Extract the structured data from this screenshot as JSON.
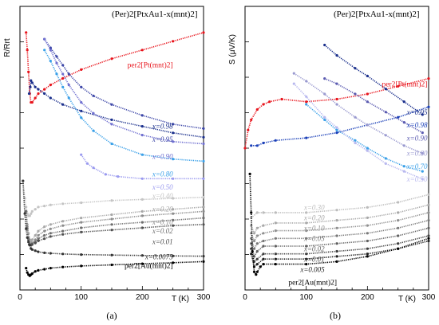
{
  "chart_data": [
    {
      "panel_label": "(a)",
      "type": "line",
      "title": "(Per)2[PtxAu1-x(mnt)2]",
      "ylabel": "R/Rrt",
      "xlabel": "T (K)",
      "xlim": [
        0,
        300
      ],
      "x_ticks": [
        "0",
        "100",
        "200",
        "300"
      ],
      "series": [
        {
          "name": "per2[Pt(mnt)2]",
          "color": "#e8141c",
          "x": [
            10,
            12,
            14,
            16,
            18,
            20,
            25,
            30,
            40,
            50,
            70,
            100,
            150,
            200,
            250,
            300
          ],
          "y": [
            98,
            90,
            80,
            70,
            66,
            66,
            68,
            70,
            72,
            74,
            77,
            81,
            86,
            90,
            94,
            98
          ]
        },
        {
          "name": "x=0.98",
          "color": "#1a2f8c",
          "x": [
            15,
            17,
            18,
            20,
            25,
            30,
            40,
            50,
            70,
            100,
            150,
            200,
            250,
            300
          ],
          "y": [
            70,
            73,
            76,
            75,
            73,
            72,
            70,
            68,
            65,
            62,
            58,
            55,
            52,
            50
          ]
        },
        {
          "name": "x=0.95",
          "color": "#3d47a8",
          "x": [
            40,
            50,
            60,
            70,
            80,
            100,
            120,
            150,
            200,
            250,
            300
          ],
          "y": [
            95,
            91,
            87,
            83,
            79,
            73,
            69,
            65,
            60,
            56,
            54
          ]
        },
        {
          "name": "x=0.90",
          "color": "#6f6fd0",
          "x": [
            40,
            50,
            60,
            70,
            80,
            100,
            120,
            150,
            200,
            250,
            300
          ],
          "y": [
            95,
            90,
            84,
            79,
            74,
            66,
            61,
            56,
            51,
            48,
            47
          ]
        },
        {
          "name": "x=0.80",
          "color": "#3aa0e8",
          "x": [
            40,
            50,
            60,
            70,
            80,
            100,
            120,
            150,
            200,
            250,
            300
          ],
          "y": [
            90,
            85,
            79,
            73,
            68,
            59,
            53,
            47,
            42,
            40,
            39
          ]
        },
        {
          "name": "x=0.50",
          "color": "#9a9aef",
          "x": [
            100,
            110,
            120,
            140,
            160,
            200,
            250,
            300
          ],
          "y": [
            42,
            38,
            36,
            33,
            32,
            31,
            31,
            31
          ]
        },
        {
          "name": "x=0.40",
          "color": "#c4c4c4",
          "x": [
            5,
            8,
            10,
            12,
            14,
            16,
            18,
            20,
            25,
            30,
            40,
            50,
            70,
            100,
            150,
            200,
            250,
            300
          ],
          "y": [
            30,
            22,
            18,
            15,
            14,
            14,
            15,
            16,
            17,
            18,
            18.5,
            19,
            19.5,
            20,
            21,
            21.5,
            22,
            22.5
          ]
        },
        {
          "name": "x=0.20",
          "color": "#a8a8a8",
          "x": [
            10,
            12,
            14,
            16,
            18,
            20,
            25,
            30,
            40,
            50,
            70,
            100,
            150,
            200,
            250,
            300
          ],
          "y": [
            16,
            10,
            6,
            3,
            2,
            3,
            5,
            7,
            9,
            10,
            11.5,
            13,
            14.5,
            16,
            17,
            18
          ]
        },
        {
          "name": "x=0.10",
          "color": "#8c8c8c",
          "x": [
            10,
            12,
            14,
            16,
            18,
            20,
            25,
            30,
            40,
            50,
            70,
            100,
            150,
            200,
            250,
            300
          ],
          "y": [
            16,
            9,
            4,
            1,
            0.5,
            1.5,
            3,
            5,
            7,
            8,
            9.5,
            11,
            12.5,
            14,
            15,
            16
          ]
        },
        {
          "name": "x=0.02",
          "color": "#6e6e6e",
          "x": [
            10,
            12,
            14,
            16,
            18,
            20,
            25,
            30,
            40,
            50,
            70,
            100,
            150,
            200,
            250,
            300
          ],
          "y": [
            16,
            8,
            3,
            0.8,
            0.5,
            1,
            2,
            3.5,
            5,
            6,
            7,
            8.5,
            10,
            11,
            12,
            13
          ]
        },
        {
          "name": "x=0.01",
          "color": "#505050",
          "x": [
            15,
            18,
            20,
            25,
            30,
            40,
            50,
            70,
            100,
            150,
            200,
            250,
            300
          ],
          "y": [
            0.8,
            0.5,
            0.8,
            1.5,
            2.5,
            3.5,
            4.5,
            5.5,
            6.5,
            7.5,
            8.5,
            9.5,
            10
          ]
        },
        {
          "name": "x=0.0075",
          "color": "#333333",
          "x": [
            5,
            8,
            10,
            12,
            14,
            16,
            18,
            20,
            25,
            30,
            40,
            50,
            70,
            100,
            150,
            200,
            250,
            300
          ],
          "y": [
            30,
            15,
            8,
            4,
            2,
            0.5,
            -1,
            -1.5,
            -2,
            -2.5,
            -3,
            -3.2,
            -3.5,
            -3.8,
            -4,
            -4.2,
            -4.4,
            -4.5
          ]
        },
        {
          "name": "per2[Au(mnt)2]",
          "color": "#000000",
          "x": [
            10,
            12,
            14,
            16,
            18,
            20,
            25,
            30,
            40,
            50,
            70,
            100,
            150,
            200,
            250,
            300
          ],
          "y": [
            -10,
            -12,
            -13,
            -13.5,
            -13,
            -12.5,
            -11.5,
            -11,
            -10.5,
            -10,
            -9.5,
            -9,
            -8.5,
            -8,
            -7.5,
            -7
          ]
        }
      ],
      "labels": [
        "per2[Pt(mnt)2]",
        "x=0.98",
        "x=0.95",
        "x=0.90",
        "x=0.80",
        "x=0.50",
        "x=0.40",
        "x=0.20",
        "x=0.10",
        "x=0.02",
        "x=0.01",
        "x=0.0075",
        "per2[Au(mnt)2]"
      ],
      "grid": false,
      "legend": "none"
    },
    {
      "panel_label": "(b)",
      "type": "line",
      "title": "(Per)2[PtxAu1-x(mnt)2]",
      "ylabel": "S (μV/K)",
      "xlabel": "T (K)",
      "xlim": [
        0,
        300
      ],
      "x_ticks": [
        "0",
        "100",
        "200",
        "300"
      ],
      "series": [
        {
          "name": "per2[Pt(mnt)2]",
          "color": "#e8141c",
          "x": [
            0,
            5,
            10,
            20,
            30,
            40,
            60,
            100,
            150,
            200,
            250,
            300
          ],
          "y": [
            55,
            62,
            66,
            70,
            72,
            73,
            74,
            73,
            74,
            76,
            79,
            82
          ]
        },
        {
          "name": "x=0.95",
          "color": "#1a2f8c",
          "x": [
            130,
            150,
            180,
            200,
            230,
            260,
            290
          ],
          "y": [
            95,
            91,
            86,
            83,
            78,
            73,
            68
          ]
        },
        {
          "name": "x=0.98",
          "color": "#1a3fb8",
          "x": [
            10,
            20,
            30,
            50,
            100,
            150,
            200,
            250,
            300
          ],
          "y": [
            56,
            56,
            57,
            58,
            59,
            61,
            64,
            67,
            71
          ]
        },
        {
          "name": "x=0.90",
          "color": "#5a5ab0",
          "x": [
            130,
            150,
            180,
            200,
            230,
            260,
            290
          ],
          "y": [
            82,
            80,
            76,
            73,
            69,
            65,
            61
          ]
        },
        {
          "name": "x=0.80",
          "color": "#9a9ad0",
          "x": [
            80,
            100,
            130,
            150,
            180,
            200,
            230,
            260,
            290
          ],
          "y": [
            84,
            81,
            76,
            72,
            67,
            64,
            60,
            56,
            53
          ]
        },
        {
          "name": "x=0.70",
          "color": "#3aa0e8",
          "x": [
            100,
            130,
            150,
            180,
            200,
            230,
            260,
            290
          ],
          "y": [
            72,
            66,
            62,
            58,
            55,
            51,
            48,
            46
          ]
        },
        {
          "name": "x=0.50",
          "color": "#b8b8ef",
          "x": [
            80,
            100,
            130,
            150,
            180,
            200,
            230,
            260,
            290
          ],
          "y": [
            80,
            75,
            67,
            63,
            57,
            54,
            49,
            46,
            43
          ]
        },
        {
          "name": "x=0.30",
          "color": "#bcbcbc",
          "x": [
            10,
            20,
            30,
            50,
            100,
            150,
            200,
            250,
            300
          ],
          "y": [
            28,
            30,
            30,
            30,
            30,
            31,
            32,
            34,
            37
          ]
        },
        {
          "name": "x=0.20",
          "color": "#a8a8a8",
          "x": [
            10,
            15,
            20,
            30,
            50,
            100,
            150,
            200,
            250,
            300
          ],
          "y": [
            25,
            22,
            24,
            25,
            26,
            26,
            27,
            28,
            30,
            33
          ]
        },
        {
          "name": "x=0.10",
          "color": "#909090",
          "x": [
            10,
            15,
            20,
            30,
            50,
            100,
            150,
            200,
            250,
            300
          ],
          "y": [
            22,
            19,
            21,
            22,
            23,
            23,
            24,
            25,
            27,
            30
          ]
        },
        {
          "name": "x=0.05",
          "color": "#787878",
          "x": [
            10,
            15,
            20,
            30,
            50,
            100,
            150,
            200,
            250,
            300
          ],
          "y": [
            20,
            16,
            18,
            19,
            20,
            20,
            21,
            22,
            24,
            27
          ]
        },
        {
          "name": "x=0.02",
          "color": "#606060",
          "x": [
            10,
            15,
            20,
            30,
            50,
            100,
            150,
            200,
            250,
            300
          ],
          "y": [
            18,
            13,
            15,
            17,
            17,
            17,
            18,
            19,
            21,
            24
          ]
        },
        {
          "name": "x=0.01",
          "color": "#404040",
          "x": [
            10,
            15,
            20,
            30,
            50,
            100,
            150,
            200,
            250,
            300
          ],
          "y": [
            16,
            11,
            12,
            14,
            14,
            14,
            15,
            16,
            18,
            21
          ]
        },
        {
          "name": "x=0.005",
          "color": "#202020",
          "x": [
            10,
            15,
            20,
            30,
            50,
            100,
            150,
            200,
            250,
            300
          ],
          "y": [
            14,
            9,
            10,
            12,
            12,
            12,
            13,
            14,
            16,
            19
          ]
        },
        {
          "name": "per2[Au(mnt)2]",
          "color": "#000000",
          "x": [
            8,
            10,
            12,
            15,
            18,
            20,
            25,
            30,
            50,
            100,
            150,
            200,
            250,
            300
          ],
          "y": [
            45,
            30,
            15,
            7,
            6,
            7,
            9,
            10,
            10,
            10,
            11,
            13,
            16,
            20
          ]
        }
      ],
      "labels": [
        "per2[Pt(mnt)2]",
        "x=0.95",
        "x=0.98",
        "x=0.90",
        "x=0.80",
        "x=0.70",
        "x=0.50",
        "x=0.30",
        "x=0.20",
        "x=0.10",
        "x=0.05",
        "x=0.02",
        "x=0.01",
        "x=0.005",
        "per2[Au(mnt)2]"
      ],
      "grid": false,
      "legend": "none"
    }
  ]
}
